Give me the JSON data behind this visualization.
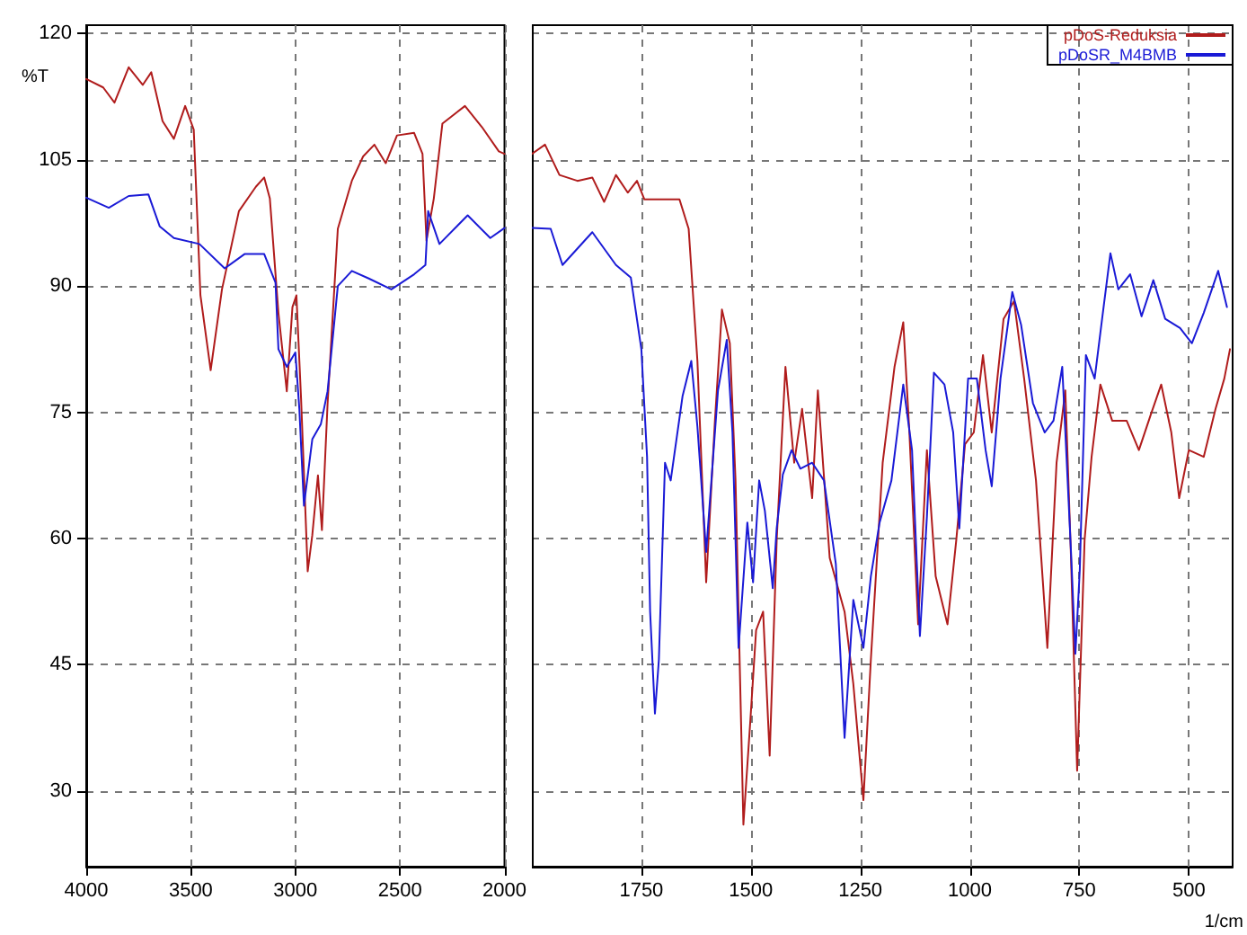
{
  "chart_data": [
    {
      "type": "line",
      "ylabel": "%T",
      "xlim": [
        4000,
        2000
      ],
      "ylim": [
        21,
        121
      ],
      "xticks": [
        4000,
        3500,
        3000,
        2500,
        2000
      ],
      "yticks": [
        30,
        45,
        60,
        75,
        90,
        105,
        120
      ],
      "grid": true,
      "marker": "none",
      "line_style": "solid",
      "series": [
        {
          "color": "#b01c1c",
          "x": [
            4000,
            3919,
            3865,
            3797,
            3730,
            3689,
            3635,
            3581,
            3527,
            3486,
            3454,
            3405,
            3351,
            3270,
            3189,
            3149,
            3122,
            3081,
            3041,
            3014,
            2995,
            2973,
            2941,
            2919,
            2892,
            2873,
            2846,
            2797,
            2730,
            2676,
            2622,
            2568,
            2514,
            2432,
            2392,
            2373,
            2338,
            2297,
            2189,
            2108,
            2027,
            2000
          ],
          "values": [
            114.6,
            113.6,
            111.8,
            116,
            113.9,
            115.4,
            109.6,
            107.5,
            111.4,
            108.6,
            88.9,
            80,
            89.6,
            98.9,
            101.8,
            102.9,
            100.4,
            86.8,
            77.5,
            87.5,
            88.9,
            76.8,
            56.1,
            60.4,
            67.5,
            61,
            76,
            96.8,
            102.5,
            105.4,
            106.8,
            104.6,
            107.9,
            108.2,
            105.7,
            95.4,
            100.4,
            109.3,
            111.4,
            108.9,
            106,
            105.7
          ]
        },
        {
          "color": "#1a1ad6",
          "x": [
            4000,
            3892,
            3797,
            3703,
            3649,
            3581,
            3459,
            3338,
            3243,
            3149,
            3095,
            3081,
            3041,
            3000,
            2981,
            2959,
            2919,
            2878,
            2846,
            2797,
            2730,
            2649,
            2541,
            2432,
            2378,
            2365,
            2311,
            2176,
            2068,
            2000
          ],
          "values": [
            100.5,
            99.3,
            100.7,
            100.9,
            97.1,
            95.7,
            95,
            92.1,
            93.8,
            93.8,
            90.4,
            82.5,
            80.4,
            82.1,
            75.4,
            63.9,
            71.8,
            73.6,
            77.5,
            90,
            91.8,
            90.9,
            89.6,
            91.4,
            92.5,
            98.9,
            95,
            98.4,
            95.7,
            96.9
          ]
        }
      ]
    },
    {
      "type": "line",
      "xlabel": "1/cm",
      "xlim": [
        2000,
        400
      ],
      "ylim": [
        21,
        121
      ],
      "xticks": [
        1750,
        1500,
        1250,
        1000,
        750,
        500
      ],
      "yticks": [
        30,
        45,
        60,
        75,
        90,
        105,
        120
      ],
      "grid": true,
      "marker": "none",
      "line_style": "solid",
      "legend": "top right",
      "tick_labels": "x",
      "series": [
        {
          "name": "pDoS-Reduksia",
          "color": "#b01c1c",
          "x": [
            2000,
            1970,
            1937,
            1896,
            1862,
            1835,
            1808,
            1781,
            1760,
            1743,
            1663,
            1642,
            1622,
            1602,
            1582,
            1566,
            1548,
            1535,
            1517,
            1501,
            1488,
            1472,
            1457,
            1441,
            1421,
            1401,
            1383,
            1360,
            1347,
            1320,
            1286,
            1266,
            1243,
            1226,
            1199,
            1172,
            1152,
            1138,
            1118,
            1098,
            1078,
            1051,
            1031,
            1011,
            991,
            970,
            950,
            923,
            899,
            876,
            849,
            823,
            802,
            782,
            769,
            755,
            738,
            722,
            702,
            675,
            642,
            614,
            587,
            563,
            540,
            522,
            500,
            466,
            439,
            419,
            406
          ],
          "values": [
            105.7,
            106.8,
            103.2,
            102.5,
            102.9,
            100,
            103.2,
            101.1,
            102.5,
            100.3,
            100.3,
            96.8,
            81.1,
            54.8,
            74,
            87.2,
            83.2,
            66.9,
            26,
            38.5,
            49.1,
            51.3,
            34.2,
            59.8,
            80.4,
            69,
            75.4,
            64.8,
            77.6,
            57.7,
            51.3,
            42.7,
            28.9,
            45.6,
            69,
            80.4,
            85.7,
            72.6,
            49.8,
            70.5,
            55.5,
            49.8,
            59.8,
            71.2,
            72.6,
            81.8,
            72.6,
            86.1,
            88.2,
            79,
            66.9,
            47,
            69,
            77.6,
            57.7,
            32.4,
            59.8,
            69.7,
            78.3,
            74,
            74,
            70.5,
            74.7,
            78.3,
            72.6,
            64.8,
            70.5,
            69.7,
            75.4,
            79,
            82.5
          ]
        },
        {
          "name": "pDoSR_M4BMB",
          "color": "#1a1ad6",
          "x": [
            2000,
            1957,
            1930,
            1862,
            1808,
            1774,
            1750,
            1737,
            1730,
            1719,
            1710,
            1696,
            1683,
            1656,
            1636,
            1622,
            1602,
            1575,
            1555,
            1542,
            1528,
            1508,
            1495,
            1481,
            1468,
            1450,
            1441,
            1427,
            1407,
            1387,
            1360,
            1333,
            1306,
            1286,
            1266,
            1243,
            1226,
            1206,
            1179,
            1152,
            1132,
            1114,
            1098,
            1082,
            1058,
            1038,
            1024,
            1004,
            984,
            964,
            950,
            930,
            903,
            883,
            856,
            829,
            809,
            789,
            769,
            759,
            749,
            735,
            715,
            698,
            679,
            661,
            634,
            608,
            581,
            554,
            520,
            493,
            466,
            433,
            413
          ],
          "values": [
            96.9,
            96.8,
            92.5,
            96.4,
            92.5,
            91,
            82.5,
            69.7,
            51.3,
            39.2,
            45.6,
            69,
            66.9,
            76.9,
            81.1,
            73.3,
            58.4,
            77.6,
            83.6,
            72.6,
            47,
            61.9,
            54.8,
            66.9,
            63.3,
            54.1,
            61.2,
            67.6,
            70.5,
            68.3,
            69,
            66.9,
            57,
            36.3,
            52.7,
            47,
            55.5,
            61.9,
            66.9,
            78.3,
            70.5,
            48.4,
            62.6,
            79.7,
            78.3,
            72.6,
            61.2,
            79,
            79,
            70.5,
            66.2,
            79,
            89.3,
            85.4,
            76.1,
            72.6,
            74,
            80.4,
            58.4,
            46.3,
            56.2,
            81.8,
            79,
            86.1,
            93.9,
            89.6,
            91.4,
            86.4,
            90.7,
            86.1,
            85,
            83.2,
            86.8,
            91.8,
            87.5
          ]
        }
      ]
    }
  ]
}
